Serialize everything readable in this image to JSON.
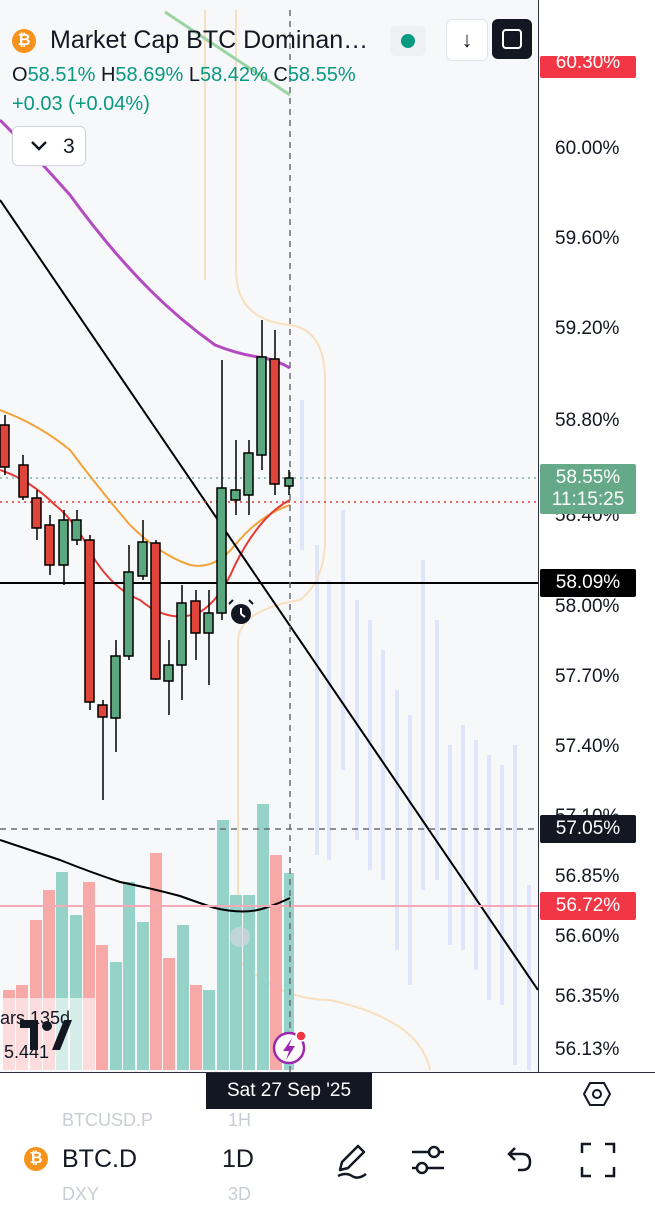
{
  "header": {
    "title": "Market Cap BTC Dominan…",
    "percent_mode": "%",
    "icons": {
      "logo": "bitcoin-logo",
      "live": "live-status-dot",
      "download": "download-icon",
      "fullscreen": "fullscreen-icon"
    }
  },
  "ohlc": {
    "o_label": "O",
    "o": "58.51%",
    "h_label": "H",
    "h": "58.69%",
    "l_label": "L",
    "l": "58.42%",
    "c_label": "C",
    "c": "58.55%",
    "change": "+0.03 (+0.04%)"
  },
  "indicators": {
    "count": "3",
    "chevron": "chevron-down-icon"
  },
  "price_axis": {
    "ticks": [
      "60.00%",
      "59.60%",
      "59.20%",
      "58.80%",
      "58.40%",
      "58.00%",
      "57.70%",
      "57.40%",
      "57.10%",
      "56.85%",
      "56.60%",
      "56.35%",
      "56.13%"
    ],
    "top_tag": "60.30%",
    "last_price": "58.55%",
    "countdown": "11:15:25",
    "line_price": "58.09%",
    "dashed_price": "57.05%",
    "red_price": "56.72%",
    "colors": {
      "up": "#089981",
      "down": "#f23645",
      "last_tag": "#66a988",
      "line_tag": "#000000",
      "red_tag": "#f23645"
    }
  },
  "volume_legend": {
    "line1": "ars  135d",
    "line2": "5.441"
  },
  "crosshair_date": "Sat 27 Sep '25",
  "bottom_toolbar": {
    "symbol": "BTC.D",
    "interval": "1D",
    "ghost": {
      "sym1": "BTCUSD.P",
      "int1": "1H",
      "sym2": "DXY",
      "int2": "3D"
    },
    "icons": [
      "pen-icon",
      "sliders-icon",
      "undo-icon",
      "fullscreen-icon"
    ]
  }
}
